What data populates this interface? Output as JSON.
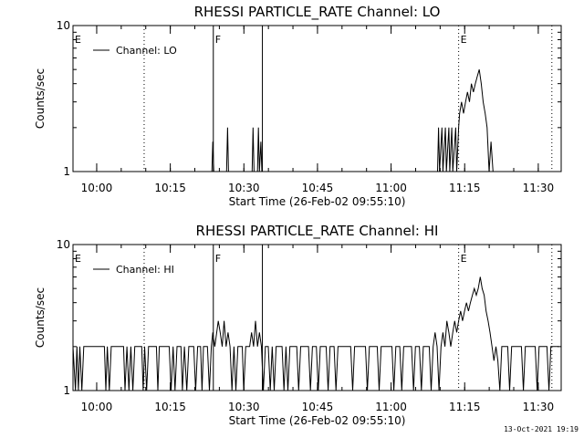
{
  "footer": {
    "timestamp": "13-Oct-2021 19:19"
  },
  "chart_data": [
    {
      "type": "line",
      "title": "RHESSI PARTICLE_RATE Channel: LO",
      "xlabel": "Start Time (26-Feb-02 09:55:10)",
      "ylabel": "Counts/sec",
      "y_scale": "log",
      "ylim": [
        1,
        10
      ],
      "y_tick_labels": [
        "1",
        "10"
      ],
      "x_tick_labels": [
        "10:00",
        "10:15",
        "10:30",
        "10:45",
        "11:00",
        "11:15",
        "11:30"
      ],
      "x_ticks_min": [
        4.83,
        19.83,
        34.83,
        49.83,
        64.83,
        79.83,
        94.83
      ],
      "xlim_min": [
        0,
        99.5
      ],
      "legend": {
        "label": "Channel: LO",
        "position": "top-left"
      },
      "markers": [
        {
          "label": "E",
          "t_min": 0,
          "style": "dotted"
        },
        {
          "label": "",
          "t_min": 14.5,
          "style": "dotted"
        },
        {
          "label": "F",
          "t_min": 28.6,
          "style": "solid"
        },
        {
          "label": "",
          "t_min": 38.6,
          "style": "solid"
        },
        {
          "label": "E",
          "t_min": 78.6,
          "style": "dotted"
        },
        {
          "label": "",
          "t_min": 97.6,
          "style": "dotted"
        }
      ],
      "series": [
        {
          "name": "Channel: LO",
          "points": [
            [
              0,
              1
            ],
            [
              28.3,
              1
            ],
            [
              28.5,
              1.6
            ],
            [
              28.7,
              1
            ],
            [
              31.3,
              1
            ],
            [
              31.5,
              2
            ],
            [
              31.7,
              1
            ],
            [
              36.5,
              1
            ],
            [
              36.7,
              2
            ],
            [
              36.9,
              1
            ],
            [
              37.6,
              1
            ],
            [
              37.8,
              2
            ],
            [
              38.0,
              1
            ],
            [
              38.3,
              1.6
            ],
            [
              38.5,
              1
            ],
            [
              74.3,
              1
            ],
            [
              74.5,
              2
            ],
            [
              74.7,
              1
            ],
            [
              75.2,
              2
            ],
            [
              75.4,
              1
            ],
            [
              75.9,
              2
            ],
            [
              76.1,
              1
            ],
            [
              76.6,
              2
            ],
            [
              76.8,
              1
            ],
            [
              77.2,
              2
            ],
            [
              77.4,
              1
            ],
            [
              78.0,
              2
            ],
            [
              78.2,
              1
            ],
            [
              78.6,
              2
            ],
            [
              78.8,
              2.5
            ],
            [
              79.2,
              3
            ],
            [
              79.6,
              2.5
            ],
            [
              80.0,
              3
            ],
            [
              80.4,
              3.5
            ],
            [
              80.8,
              3
            ],
            [
              81.2,
              4
            ],
            [
              81.6,
              3.5
            ],
            [
              82.0,
              4
            ],
            [
              82.4,
              4.5
            ],
            [
              82.8,
              5
            ],
            [
              83.2,
              4
            ],
            [
              83.6,
              3
            ],
            [
              84.0,
              2.5
            ],
            [
              84.4,
              2
            ],
            [
              84.8,
              1
            ],
            [
              85.2,
              1.6
            ],
            [
              85.6,
              1
            ],
            [
              99.5,
              1
            ]
          ]
        }
      ]
    },
    {
      "type": "line",
      "title": "RHESSI PARTICLE_RATE Channel: HI",
      "xlabel": "Start Time (26-Feb-02 09:55:10)",
      "ylabel": "Counts/sec",
      "y_scale": "log",
      "ylim": [
        1,
        10
      ],
      "y_tick_labels": [
        "1",
        "10"
      ],
      "x_tick_labels": [
        "10:00",
        "10:15",
        "10:30",
        "10:45",
        "11:00",
        "11:15",
        "11:30"
      ],
      "x_ticks_min": [
        4.83,
        19.83,
        34.83,
        49.83,
        64.83,
        79.83,
        94.83
      ],
      "xlim_min": [
        0,
        99.5
      ],
      "legend": {
        "label": "Channel: HI",
        "position": "top-left"
      },
      "markers": [
        {
          "label": "E",
          "t_min": 0,
          "style": "dotted"
        },
        {
          "label": "",
          "t_min": 14.5,
          "style": "dotted"
        },
        {
          "label": "F",
          "t_min": 28.6,
          "style": "solid"
        },
        {
          "label": "",
          "t_min": 38.6,
          "style": "solid"
        },
        {
          "label": "E",
          "t_min": 78.6,
          "style": "dotted"
        },
        {
          "label": "",
          "t_min": 97.6,
          "style": "dotted"
        }
      ],
      "series": [
        {
          "name": "Channel: HI",
          "points": [
            [
              0,
              2
            ],
            [
              0.5,
              1
            ],
            [
              0.8,
              2
            ],
            [
              1.1,
              1
            ],
            [
              1.4,
              2
            ],
            [
              1.8,
              1
            ],
            [
              2.2,
              2
            ],
            [
              6.4,
              2
            ],
            [
              6.7,
              1
            ],
            [
              7.0,
              2
            ],
            [
              7.4,
              1
            ],
            [
              7.8,
              2
            ],
            [
              10.3,
              2
            ],
            [
              10.6,
              1
            ],
            [
              11.0,
              2
            ],
            [
              11.4,
              1
            ],
            [
              11.8,
              2
            ],
            [
              12.2,
              1
            ],
            [
              12.6,
              2
            ],
            [
              14.0,
              2
            ],
            [
              14.3,
              1
            ],
            [
              14.6,
              2
            ],
            [
              15.0,
              1
            ],
            [
              15.4,
              2
            ],
            [
              17.0,
              2
            ],
            [
              17.3,
              1
            ],
            [
              17.6,
              2
            ],
            [
              19.6,
              2
            ],
            [
              20.0,
              1
            ],
            [
              20.4,
              2
            ],
            [
              20.8,
              1
            ],
            [
              21.2,
              2
            ],
            [
              22.0,
              2
            ],
            [
              22.3,
              1
            ],
            [
              22.7,
              2
            ],
            [
              23.2,
              1
            ],
            [
              23.6,
              2
            ],
            [
              24.6,
              2
            ],
            [
              25.0,
              1
            ],
            [
              25.4,
              2
            ],
            [
              26.0,
              2
            ],
            [
              26.3,
              1
            ],
            [
              26.6,
              2
            ],
            [
              27.4,
              2
            ],
            [
              27.8,
              1
            ],
            [
              28.2,
              2
            ],
            [
              28.5,
              2.5
            ],
            [
              28.9,
              2
            ],
            [
              29.3,
              2.5
            ],
            [
              29.6,
              3
            ],
            [
              30.0,
              2.5
            ],
            [
              30.4,
              2
            ],
            [
              30.8,
              3
            ],
            [
              31.2,
              2
            ],
            [
              31.6,
              2.5
            ],
            [
              32.0,
              2
            ],
            [
              32.4,
              1
            ],
            [
              32.8,
              2
            ],
            [
              33.2,
              1
            ],
            [
              33.6,
              2
            ],
            [
              34.5,
              2
            ],
            [
              34.8,
              1
            ],
            [
              35.2,
              2
            ],
            [
              36.0,
              2
            ],
            [
              36.4,
              2.5
            ],
            [
              36.8,
              2
            ],
            [
              37.2,
              3
            ],
            [
              37.6,
              2
            ],
            [
              38.0,
              2.5
            ],
            [
              38.4,
              2
            ],
            [
              38.8,
              1
            ],
            [
              39.2,
              2
            ],
            [
              39.8,
              2
            ],
            [
              40.2,
              1
            ],
            [
              40.6,
              2
            ],
            [
              41.0,
              1
            ],
            [
              41.4,
              2
            ],
            [
              42.6,
              2
            ],
            [
              43.0,
              1
            ],
            [
              43.4,
              2
            ],
            [
              43.8,
              1
            ],
            [
              44.2,
              2
            ],
            [
              45.6,
              2
            ],
            [
              46.0,
              1
            ],
            [
              46.4,
              2
            ],
            [
              48.0,
              2
            ],
            [
              48.4,
              1
            ],
            [
              48.8,
              2
            ],
            [
              49.6,
              2
            ],
            [
              50.0,
              1
            ],
            [
              50.4,
              2
            ],
            [
              51.6,
              2
            ],
            [
              52.0,
              1
            ],
            [
              52.4,
              2
            ],
            [
              53.2,
              2
            ],
            [
              53.6,
              1
            ],
            [
              54.0,
              2
            ],
            [
              56.6,
              2
            ],
            [
              57.0,
              1
            ],
            [
              57.4,
              2
            ],
            [
              59.6,
              2
            ],
            [
              60.0,
              1
            ],
            [
              60.4,
              2
            ],
            [
              62.0,
              2
            ],
            [
              62.4,
              1
            ],
            [
              62.8,
              2
            ],
            [
              65.0,
              2
            ],
            [
              65.4,
              1
            ],
            [
              65.8,
              2
            ],
            [
              66.6,
              2
            ],
            [
              67.0,
              1
            ],
            [
              67.4,
              2
            ],
            [
              69.0,
              2
            ],
            [
              69.4,
              1
            ],
            [
              69.8,
              2
            ],
            [
              70.6,
              2
            ],
            [
              71.0,
              1
            ],
            [
              71.4,
              2
            ],
            [
              72.6,
              2
            ],
            [
              73.0,
              1
            ],
            [
              73.4,
              2
            ],
            [
              73.8,
              2.5
            ],
            [
              74.2,
              2
            ],
            [
              74.6,
              1
            ],
            [
              75.0,
              2
            ],
            [
              75.4,
              2.5
            ],
            [
              75.8,
              2
            ],
            [
              76.2,
              3
            ],
            [
              76.6,
              2.5
            ],
            [
              77.0,
              2
            ],
            [
              77.4,
              2.5
            ],
            [
              77.8,
              3
            ],
            [
              78.2,
              2.5
            ],
            [
              78.6,
              3
            ],
            [
              79.0,
              3.5
            ],
            [
              79.4,
              3
            ],
            [
              79.8,
              3.5
            ],
            [
              80.2,
              4
            ],
            [
              80.6,
              3.5
            ],
            [
              81.0,
              4
            ],
            [
              81.4,
              4.5
            ],
            [
              81.8,
              5
            ],
            [
              82.2,
              4.5
            ],
            [
              82.6,
              5
            ],
            [
              83.0,
              6
            ],
            [
              83.4,
              5
            ],
            [
              83.8,
              4.5
            ],
            [
              84.2,
              3.5
            ],
            [
              84.6,
              3
            ],
            [
              85.0,
              2.5
            ],
            [
              85.4,
              2
            ],
            [
              85.8,
              1.6
            ],
            [
              86.2,
              2
            ],
            [
              86.6,
              1.6
            ],
            [
              87.0,
              1
            ],
            [
              87.4,
              2
            ],
            [
              88.6,
              2
            ],
            [
              89.0,
              1
            ],
            [
              89.4,
              2
            ],
            [
              91.4,
              2
            ],
            [
              91.8,
              1
            ],
            [
              92.2,
              2
            ],
            [
              94.2,
              2
            ],
            [
              94.6,
              1
            ],
            [
              95.0,
              2
            ],
            [
              96.6,
              2
            ],
            [
              97.0,
              1
            ],
            [
              97.4,
              2
            ],
            [
              99.0,
              2
            ]
          ]
        }
      ]
    }
  ]
}
